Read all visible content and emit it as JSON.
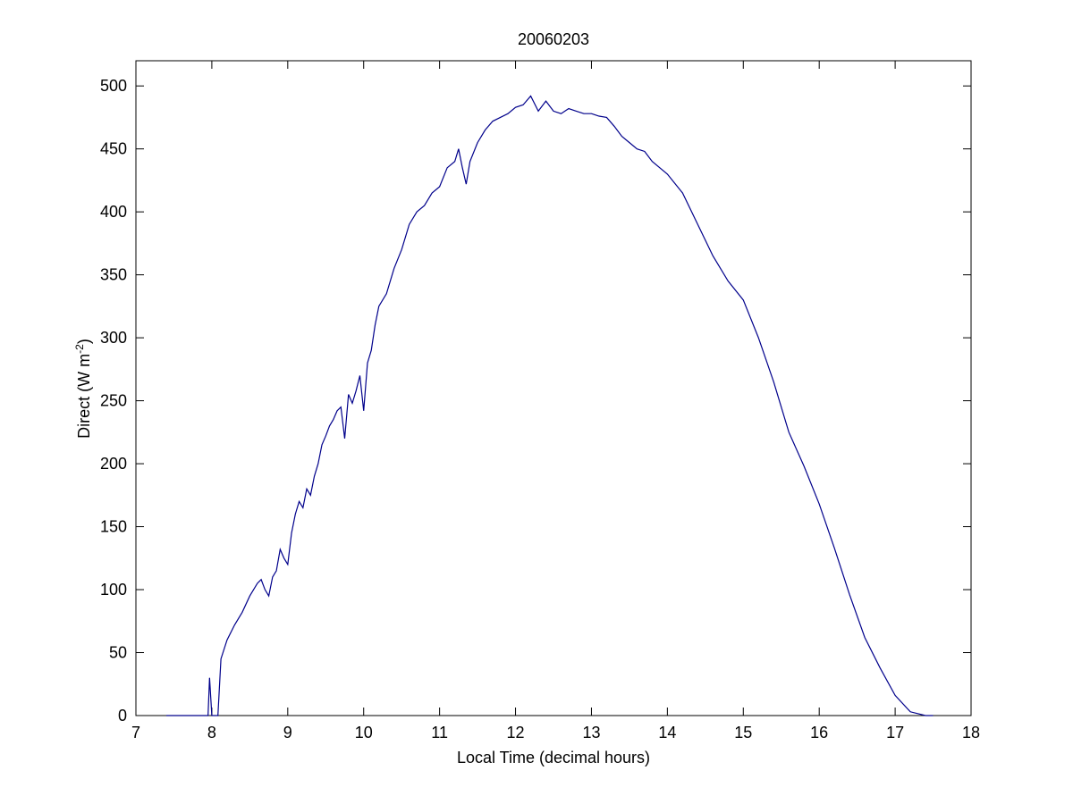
{
  "chart_data": {
    "type": "line",
    "title": "20060203",
    "xlabel": "Local Time (decimal hours)",
    "ylabel": [
      "Direct (W m",
      "-2",
      ")"
    ],
    "xlim": [
      7,
      18
    ],
    "xticks": [
      7,
      8,
      9,
      10,
      11,
      12,
      13,
      14,
      15,
      16,
      17,
      18
    ],
    "ylim": [
      0,
      520
    ],
    "yticks": [
      0,
      50,
      100,
      150,
      200,
      250,
      300,
      350,
      400,
      450,
      500
    ],
    "series": [
      {
        "color": "#00008b",
        "x": [
          7.4,
          7.95,
          7.97,
          8.0,
          8.08,
          8.12,
          8.2,
          8.3,
          8.4,
          8.5,
          8.6,
          8.65,
          8.7,
          8.75,
          8.8,
          8.85,
          8.9,
          8.95,
          9.0,
          9.05,
          9.1,
          9.15,
          9.2,
          9.25,
          9.3,
          9.35,
          9.4,
          9.45,
          9.5,
          9.55,
          9.6,
          9.65,
          9.7,
          9.75,
          9.8,
          9.85,
          9.9,
          9.95,
          10.0,
          10.05,
          10.1,
          10.15,
          10.2,
          10.3,
          10.4,
          10.5,
          10.6,
          10.7,
          10.8,
          10.9,
          11.0,
          11.1,
          11.2,
          11.25,
          11.3,
          11.35,
          11.4,
          11.5,
          11.6,
          11.7,
          11.8,
          11.9,
          12.0,
          12.1,
          12.2,
          12.3,
          12.4,
          12.5,
          12.6,
          12.7,
          12.8,
          12.9,
          13.0,
          13.1,
          13.2,
          13.3,
          13.4,
          13.5,
          13.6,
          13.7,
          13.8,
          13.9,
          14.0,
          14.2,
          14.4,
          14.6,
          14.8,
          15.0,
          15.2,
          15.4,
          15.6,
          15.8,
          16.0,
          16.2,
          16.4,
          16.6,
          16.8,
          17.0,
          17.2,
          17.4,
          17.5
        ],
        "values": [
          0,
          0,
          30,
          0,
          0,
          45,
          60,
          72,
          82,
          95,
          105,
          108,
          100,
          95,
          110,
          115,
          132,
          125,
          120,
          145,
          160,
          170,
          165,
          180,
          175,
          190,
          200,
          215,
          222,
          230,
          235,
          242,
          245,
          220,
          255,
          248,
          258,
          270,
          242,
          280,
          290,
          310,
          325,
          335,
          355,
          370,
          390,
          400,
          405,
          415,
          420,
          435,
          440,
          450,
          435,
          422,
          440,
          455,
          465,
          472,
          475,
          478,
          483,
          485,
          492,
          480,
          488,
          480,
          478,
          482,
          480,
          478,
          478,
          476,
          475,
          468,
          460,
          455,
          450,
          448,
          440,
          435,
          430,
          415,
          390,
          365,
          345,
          330,
          300,
          265,
          225,
          198,
          168,
          133,
          96,
          62,
          38,
          16,
          3,
          0,
          0
        ]
      }
    ]
  }
}
